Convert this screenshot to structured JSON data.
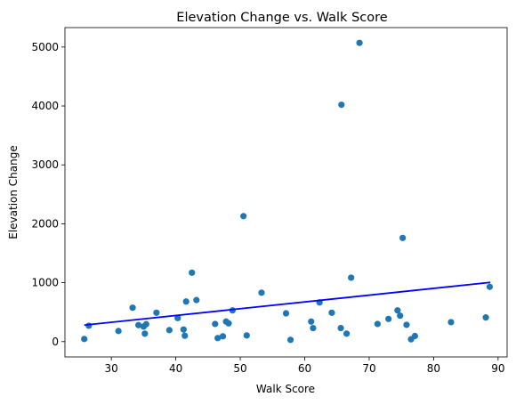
{
  "chart_data": {
    "type": "scatter",
    "title": "Elevation Change vs. Walk Score",
    "xlabel": "Walk Score",
    "ylabel": "Elevation Change",
    "xlim": [
      22.8,
      91.4
    ],
    "ylim": [
      -260,
      5330
    ],
    "xticks": [
      30,
      40,
      50,
      60,
      70,
      80,
      90
    ],
    "yticks": [
      0,
      1000,
      2000,
      3000,
      4000,
      5000
    ],
    "grid": false,
    "point_color": "#1f77b4",
    "line_color": "#0000ff",
    "trendline": {
      "x": [
        25.8,
        88.8
      ],
      "y": [
        280,
        1005
      ]
    },
    "points": [
      {
        "x": 25.8,
        "y": 45
      },
      {
        "x": 26.5,
        "y": 270
      },
      {
        "x": 31.1,
        "y": 180
      },
      {
        "x": 33.3,
        "y": 575
      },
      {
        "x": 34.2,
        "y": 280
      },
      {
        "x": 35.0,
        "y": 255
      },
      {
        "x": 35.2,
        "y": 135
      },
      {
        "x": 35.4,
        "y": 295
      },
      {
        "x": 37.0,
        "y": 490
      },
      {
        "x": 39.0,
        "y": 195
      },
      {
        "x": 40.3,
        "y": 400
      },
      {
        "x": 41.2,
        "y": 205
      },
      {
        "x": 41.4,
        "y": 100
      },
      {
        "x": 41.6,
        "y": 680
      },
      {
        "x": 42.5,
        "y": 1170
      },
      {
        "x": 43.2,
        "y": 705
      },
      {
        "x": 46.1,
        "y": 300
      },
      {
        "x": 46.5,
        "y": 60
      },
      {
        "x": 47.3,
        "y": 90
      },
      {
        "x": 47.8,
        "y": 340
      },
      {
        "x": 48.2,
        "y": 310
      },
      {
        "x": 48.8,
        "y": 530
      },
      {
        "x": 50.5,
        "y": 2130
      },
      {
        "x": 51.0,
        "y": 105
      },
      {
        "x": 53.3,
        "y": 830
      },
      {
        "x": 57.1,
        "y": 480
      },
      {
        "x": 57.8,
        "y": 30
      },
      {
        "x": 61.0,
        "y": 340
      },
      {
        "x": 61.3,
        "y": 230
      },
      {
        "x": 62.3,
        "y": 665
      },
      {
        "x": 64.2,
        "y": 490
      },
      {
        "x": 65.6,
        "y": 230
      },
      {
        "x": 65.7,
        "y": 4020
      },
      {
        "x": 66.5,
        "y": 135
      },
      {
        "x": 67.2,
        "y": 1085
      },
      {
        "x": 68.5,
        "y": 5070
      },
      {
        "x": 71.3,
        "y": 300
      },
      {
        "x": 73.0,
        "y": 385
      },
      {
        "x": 74.4,
        "y": 530
      },
      {
        "x": 74.8,
        "y": 440
      },
      {
        "x": 75.2,
        "y": 1760
      },
      {
        "x": 75.8,
        "y": 285
      },
      {
        "x": 76.5,
        "y": 40
      },
      {
        "x": 77.1,
        "y": 95
      },
      {
        "x": 82.7,
        "y": 330
      },
      {
        "x": 88.1,
        "y": 410
      },
      {
        "x": 88.7,
        "y": 930
      }
    ]
  }
}
